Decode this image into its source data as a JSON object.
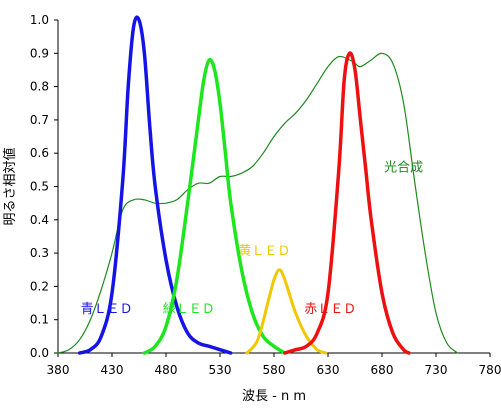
{
  "chart_data": {
    "type": "line",
    "title": "",
    "xlabel": "波長 - n m",
    "ylabel": "明るさ相対値",
    "xlim": [
      380,
      780
    ],
    "ylim": [
      0,
      1.0
    ],
    "xticks": [
      380,
      430,
      480,
      530,
      580,
      630,
      680,
      730,
      780
    ],
    "yticks": [
      0.0,
      0.1,
      0.2,
      0.3,
      0.4,
      0.5,
      0.6,
      0.7,
      0.8,
      0.9,
      1.0
    ],
    "xtick_labels": [
      "380",
      "430",
      "480",
      "530",
      "580",
      "630",
      "680",
      "730",
      "780"
    ],
    "ytick_labels": [
      "0.0",
      "0.1",
      "0.2",
      "0.3",
      "0.4",
      "0.5",
      "0.6",
      "0.7",
      "0.8",
      "0.9",
      "1.0"
    ],
    "grid": false,
    "series": [
      {
        "name": "光合成",
        "color": "#1e8a1e",
        "x": [
          380,
          390,
          400,
          410,
          420,
          430,
          440,
          450,
          460,
          470,
          480,
          490,
          500,
          510,
          520,
          530,
          540,
          550,
          560,
          570,
          580,
          590,
          600,
          610,
          620,
          630,
          640,
          650,
          655,
          660,
          670,
          680,
          690,
          700,
          710,
          720,
          730,
          740,
          750
        ],
        "y": [
          0.0,
          0.01,
          0.04,
          0.1,
          0.19,
          0.3,
          0.43,
          0.46,
          0.46,
          0.45,
          0.45,
          0.46,
          0.49,
          0.51,
          0.51,
          0.53,
          0.53,
          0.54,
          0.56,
          0.6,
          0.65,
          0.69,
          0.72,
          0.76,
          0.81,
          0.86,
          0.89,
          0.88,
          0.87,
          0.86,
          0.88,
          0.9,
          0.87,
          0.75,
          0.52,
          0.3,
          0.12,
          0.03,
          0.0
        ]
      },
      {
        "name": "青ＬＥＤ",
        "color": "#1414e6",
        "x": [
          400,
          410,
          420,
          430,
          440,
          445,
          450,
          455,
          460,
          465,
          470,
          480,
          490,
          500,
          510,
          520,
          530,
          540
        ],
        "y": [
          0.0,
          0.01,
          0.05,
          0.18,
          0.52,
          0.8,
          0.98,
          1.0,
          0.9,
          0.68,
          0.5,
          0.28,
          0.14,
          0.06,
          0.03,
          0.02,
          0.01,
          0.0
        ]
      },
      {
        "name": "緑ＬＥＤ",
        "color": "#1ee61e",
        "x": [
          460,
          470,
          480,
          490,
          500,
          510,
          515,
          520,
          525,
          530,
          535,
          540,
          550,
          560,
          570,
          580,
          590
        ],
        "y": [
          0.0,
          0.02,
          0.08,
          0.22,
          0.45,
          0.7,
          0.82,
          0.88,
          0.85,
          0.75,
          0.6,
          0.45,
          0.25,
          0.12,
          0.05,
          0.02,
          0.0
        ]
      },
      {
        "name": "黄ＬＥＤ",
        "color": "#f0c800",
        "x": [
          555,
          565,
          575,
          580,
          585,
          590,
          600,
          610,
          620,
          628
        ],
        "y": [
          0.0,
          0.04,
          0.16,
          0.22,
          0.25,
          0.22,
          0.12,
          0.05,
          0.01,
          0.0
        ]
      },
      {
        "name": "赤ＬＥＤ",
        "color": "#ee1010",
        "x": [
          590,
          600,
          610,
          620,
          630,
          640,
          645,
          650,
          655,
          660,
          665,
          670,
          680,
          690,
          700,
          705
        ],
        "y": [
          0.0,
          0.01,
          0.02,
          0.06,
          0.18,
          0.55,
          0.82,
          0.9,
          0.85,
          0.7,
          0.55,
          0.4,
          0.18,
          0.06,
          0.01,
          0.0
        ]
      }
    ],
    "labels": [
      {
        "text": "光合成",
        "x": 682,
        "y": 0.545,
        "color": "#1e8a1e"
      },
      {
        "text": "青ＬＥＤ",
        "x": 401,
        "y": 0.12,
        "color": "#1414e6"
      },
      {
        "text": "緑ＬＥＤ",
        "x": 477,
        "y": 0.12,
        "color": "#1ee61e"
      },
      {
        "text": "黄ＬＥＤ",
        "x": 547,
        "y": 0.295,
        "color": "#f0c800"
      },
      {
        "text": "赤ＬＥＤ",
        "x": 608,
        "y": 0.12,
        "color": "#ee1010"
      }
    ]
  }
}
